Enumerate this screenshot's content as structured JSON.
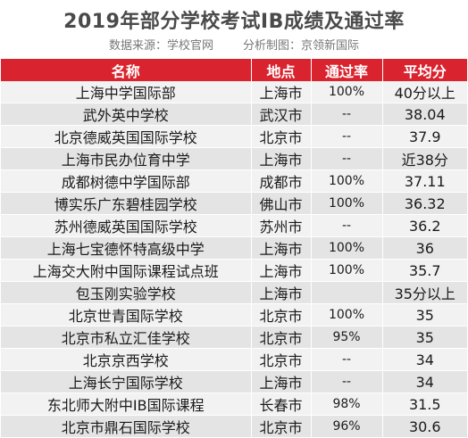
{
  "title": "2019年部分学校考试IB成绩及通过率",
  "source_label": "数据来源：学校官网",
  "credit_label": "分析制图：京领新国际",
  "chart_data": {
    "type": "table",
    "headers": [
      "名称",
      "地点",
      "通过率",
      "平均分"
    ],
    "rows": [
      [
        "上海中学国际部",
        "上海市",
        "100%",
        "40分以上"
      ],
      [
        "武外英中学校",
        "武汉市",
        "--",
        "38.04"
      ],
      [
        "北京德威英国国际学校",
        "北京市",
        "--",
        "37.9"
      ],
      [
        "上海市民办位育中学",
        "上海市",
        "--",
        "近38分"
      ],
      [
        "成都树德中学国际部",
        "成都市",
        "100%",
        "37.11"
      ],
      [
        "博实乐广东碧桂园学校",
        "佛山市",
        "100%",
        "36.32"
      ],
      [
        "苏州德威英国国际学校",
        "苏州市",
        "--",
        "36.2"
      ],
      [
        "上海七宝德怀特高级中学",
        "上海市",
        "100%",
        "36"
      ],
      [
        "上海交大附中国际课程试点班",
        "上海市",
        "100%",
        "35.7"
      ],
      [
        "包玉刚实验学校",
        "上海市",
        "",
        "35分以上"
      ],
      [
        "北京世青国际学校",
        "北京市",
        "100%",
        "35"
      ],
      [
        "北京市私立汇佳学校",
        "北京市",
        "95%",
        "35"
      ],
      [
        "北京京西学校",
        "北京市",
        "--",
        "34"
      ],
      [
        "上海长宁国际学校",
        "上海市",
        "--",
        "34"
      ],
      [
        "东北师大附中IB国际课程",
        "长春市",
        "98%",
        "31.5"
      ],
      [
        "北京市鼎石国际学校",
        "北京市",
        "96%",
        "30.6"
      ]
    ]
  }
}
